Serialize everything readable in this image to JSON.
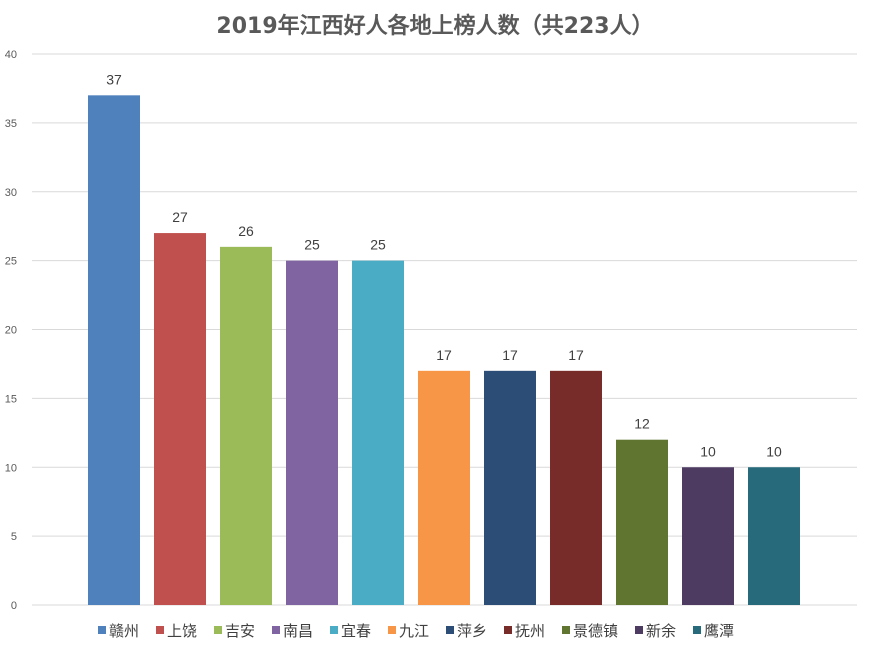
{
  "chart_data": {
    "type": "bar",
    "title": "2019年江西好人各地上榜人数（共223人）",
    "xlabel": "",
    "ylabel": "",
    "ylim": [
      0,
      40
    ],
    "yticks": [
      0,
      5,
      10,
      15,
      20,
      25,
      30,
      35,
      40
    ],
    "grid": true,
    "legend_position": "bottom",
    "categories": [
      "赣州",
      "上饶",
      "吉安",
      "南昌",
      "宜春",
      "九江",
      "萍乡",
      "抚州",
      "景德镇",
      "新余",
      "鹰潭"
    ],
    "values": [
      37,
      27,
      26,
      25,
      25,
      17,
      17,
      17,
      12,
      10,
      10
    ],
    "colors": [
      "#4F81BD",
      "#C0504D",
      "#9BBB59",
      "#8064A2",
      "#4BACC6",
      "#F79646",
      "#2C4D75",
      "#772C2A",
      "#5F7530",
      "#4D3B62",
      "#276A7C"
    ]
  }
}
